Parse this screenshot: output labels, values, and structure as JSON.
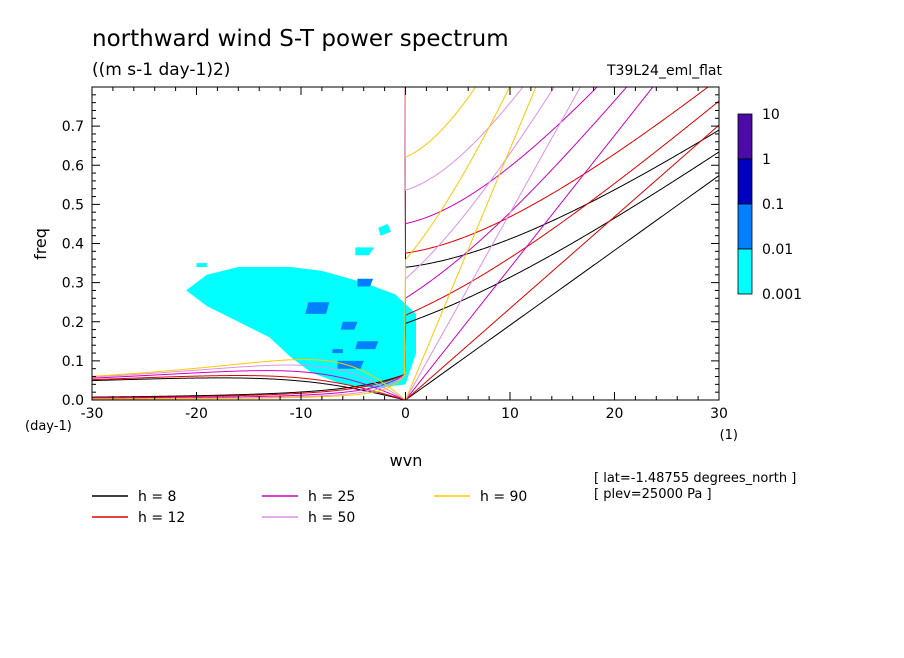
{
  "chart_data": {
    "type": "heatmap",
    "title": "northward wind S-T power spectrum",
    "subtitle": "((m s-1 day-1)2)",
    "run_label": "T39L24_eml_flat",
    "xlabel": "wvn",
    "ylabel": "freq",
    "x_unit_label": "(1)",
    "y_unit_label": "(day-1)",
    "xlim": [
      -30,
      30
    ],
    "ylim": [
      0,
      0.8
    ],
    "x_ticks": [
      -30,
      -20,
      -10,
      0,
      10,
      20,
      30
    ],
    "x_tick_labels": [
      "-30",
      "-20",
      "-10",
      "0",
      "10",
      "20",
      "30"
    ],
    "y_ticks": [
      0,
      0.1,
      0.2,
      0.3,
      0.4,
      0.5,
      0.6,
      0.7
    ],
    "y_tick_labels": [
      "0.0",
      "0.1",
      "0.2",
      "0.3",
      "0.4",
      "0.5",
      "0.6",
      "0.7"
    ],
    "colorbar": {
      "labels": [
        "10",
        "1",
        "0.1",
        "0.01",
        "0.001"
      ],
      "levels": [
        0.001,
        0.01,
        0.1,
        1,
        10
      ],
      "colors": [
        "#00ffff",
        "#0080ff",
        "#0000c0",
        "#4b0ba6"
      ]
    },
    "contour_regions": [
      {
        "level": 0.001,
        "color": "#00ffff",
        "points": [
          [
            -19,
            0.32
          ],
          [
            -16,
            0.34
          ],
          [
            -11,
            0.34
          ],
          [
            -8,
            0.33
          ],
          [
            -4,
            0.3
          ],
          [
            -1,
            0.27
          ],
          [
            1,
            0.22
          ],
          [
            1,
            0.12
          ],
          [
            0,
            0.04
          ],
          [
            -3,
            0.03
          ],
          [
            -6,
            0.04
          ],
          [
            -9,
            0.07
          ],
          [
            -11,
            0.11
          ],
          [
            -13,
            0.16
          ],
          [
            -16,
            0.2
          ],
          [
            -19,
            0.24
          ],
          [
            -21,
            0.28
          ]
        ]
      },
      {
        "level": 0.001,
        "color": "#00ffff",
        "points": [
          [
            -2.6,
            0.44
          ],
          [
            -1.7,
            0.45
          ],
          [
            -1.4,
            0.43
          ],
          [
            -2.4,
            0.42
          ]
        ]
      },
      {
        "level": 0.001,
        "color": "#00ffff",
        "points": [
          [
            -4.8,
            0.39
          ],
          [
            -3,
            0.39
          ],
          [
            -3.5,
            0.37
          ],
          [
            -4.8,
            0.37
          ]
        ]
      },
      {
        "level": 0.001,
        "color": "#00ffff",
        "points": [
          [
            -20,
            0.35
          ],
          [
            -19,
            0.35
          ],
          [
            -19,
            0.34
          ],
          [
            -20,
            0.34
          ]
        ]
      },
      {
        "level": 0.01,
        "color": "#0080ff",
        "points": [
          [
            -4.6,
            0.31
          ],
          [
            -3.1,
            0.31
          ],
          [
            -3.4,
            0.29
          ],
          [
            -4.6,
            0.29
          ]
        ]
      },
      {
        "level": 0.01,
        "color": "#0080ff",
        "points": [
          [
            -9.3,
            0.25
          ],
          [
            -7.3,
            0.25
          ],
          [
            -7.6,
            0.22
          ],
          [
            -9.6,
            0.22
          ]
        ]
      },
      {
        "level": 0.01,
        "color": "#0080ff",
        "points": [
          [
            -6,
            0.2
          ],
          [
            -4.6,
            0.2
          ],
          [
            -4.9,
            0.18
          ],
          [
            -6.2,
            0.18
          ]
        ]
      },
      {
        "level": 0.01,
        "color": "#0080ff",
        "points": [
          [
            -4.6,
            0.15
          ],
          [
            -2.6,
            0.15
          ],
          [
            -2.9,
            0.13
          ],
          [
            -4.8,
            0.13
          ]
        ]
      },
      {
        "level": 0.01,
        "color": "#0080ff",
        "points": [
          [
            -7,
            0.13
          ],
          [
            -6,
            0.13
          ],
          [
            -6,
            0.12
          ],
          [
            -7,
            0.12
          ]
        ]
      },
      {
        "level": 0.01,
        "color": "#0080ff",
        "points": [
          [
            -6.5,
            0.1
          ],
          [
            -4,
            0.1
          ],
          [
            -4.3,
            0.08
          ],
          [
            -6.5,
            0.08
          ]
        ]
      }
    ],
    "dispersion_curves": [
      {
        "name": "h =  8",
        "h": 8,
        "color": "#000000"
      },
      {
        "name": "h = 12",
        "h": 12,
        "color": "#e00000"
      },
      {
        "name": "h = 25",
        "h": 25,
        "color": "#d000c0"
      },
      {
        "name": "h = 50",
        "h": 50,
        "color": "#e090e8"
      },
      {
        "name": "h = 90",
        "h": 90,
        "color": "#ffc800"
      }
    ],
    "annotations": [
      "[ lat=-1.48755 degrees_north ]",
      "[ plev=25000 Pa ]"
    ],
    "legend_placement": "bottom",
    "grid": false
  }
}
